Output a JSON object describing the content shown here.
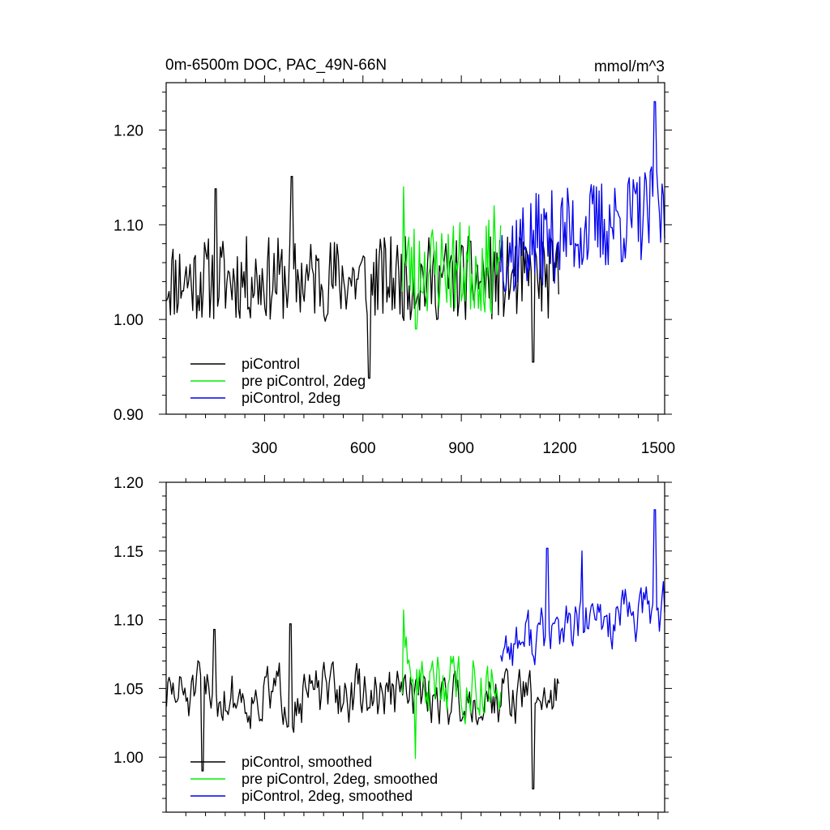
{
  "page": {
    "title_left": "0m-6500m DOC, PAC_49N-66N",
    "title_right": "mmol/m^3"
  },
  "colors": {
    "piControl": "#000000",
    "pre_piControl_2deg": "#00ee00",
    "piControl_2deg": "#0000ee"
  },
  "chart_data": [
    {
      "type": "line",
      "panel": "top",
      "xlim": [
        0,
        1520
      ],
      "ylim": [
        0.9,
        1.25
      ],
      "x_tick_labels": [
        "300",
        "600",
        "900",
        "1200",
        "1500"
      ],
      "x_ticks": [
        300,
        600,
        900,
        1200,
        1500
      ],
      "y_tick_labels": [
        "0.90",
        "1.00",
        "1.10",
        "1.20"
      ],
      "y_ticks": [
        0.9,
        1.0,
        1.1,
        1.2
      ],
      "legend_position": "bottom-left",
      "series": [
        {
          "name": "piControl",
          "color": "#000000",
          "x_range": [
            1,
            1200
          ],
          "mean": 1.043,
          "amplitude": 0.045,
          "trend": 0.0,
          "seed": 11,
          "peaks": [
            [
              152,
              1.138
            ],
            [
              382,
              1.151
            ],
            [
              620,
              0.938
            ],
            [
              1120,
              0.955
            ]
          ]
        },
        {
          "name": "pre piControl, 2deg",
          "color": "#00ee00",
          "x_range": [
            720,
            1020
          ],
          "mean": 1.055,
          "amplitude": 0.05,
          "trend": 0.0,
          "seed": 23,
          "peaks": [
            [
              724,
              1.14
            ],
            [
              762,
              0.99
            ],
            [
              1000,
              1.12
            ]
          ]
        },
        {
          "name": "piControl, 2deg",
          "color": "#0000ee",
          "x_range": [
            1020,
            1520
          ],
          "mean": 1.075,
          "amplitude": 0.05,
          "trend": 0.04,
          "seed": 37,
          "peaks": [
            [
              1490,
              1.23
            ],
            [
              1060,
              1.03
            ]
          ]
        }
      ]
    },
    {
      "type": "line",
      "panel": "bottom",
      "xlim": [
        0,
        1520
      ],
      "ylim": [
        0.96,
        1.2
      ],
      "x_ticks": [
        300,
        600,
        900,
        1200,
        1500
      ],
      "y_tick_labels": [
        "1.00",
        "1.05",
        "1.10",
        "1.15",
        "1.20"
      ],
      "y_ticks": [
        1.0,
        1.05,
        1.1,
        1.15,
        1.2
      ],
      "legend_position": "bottom-left",
      "series": [
        {
          "name": "piControl, smoothed",
          "color": "#000000",
          "x_range": [
            1,
            1200
          ],
          "mean": 1.045,
          "amplitude": 0.025,
          "trend": 0.0,
          "seed": 51,
          "peaks": [
            [
              148,
              1.093
            ],
            [
              380,
              1.097
            ],
            [
              1120,
              0.977
            ],
            [
              110,
              0.99
            ]
          ]
        },
        {
          "name": "pre piControl, 2deg, smoothed",
          "color": "#00ee00",
          "x_range": [
            720,
            1020
          ],
          "mean": 1.055,
          "amplitude": 0.028,
          "trend": 0.0,
          "seed": 63,
          "peaks": [
            [
              724,
              1.107
            ],
            [
              760,
              0.999
            ]
          ]
        },
        {
          "name": "piControl, 2deg, smoothed",
          "color": "#0000ee",
          "x_range": [
            1020,
            1520
          ],
          "mean": 1.082,
          "amplitude": 0.025,
          "trend": 0.025,
          "seed": 77,
          "peaks": [
            [
              1490,
              1.18
            ],
            [
              1162,
              1.152
            ],
            [
              1268,
              1.15
            ]
          ]
        }
      ]
    }
  ]
}
